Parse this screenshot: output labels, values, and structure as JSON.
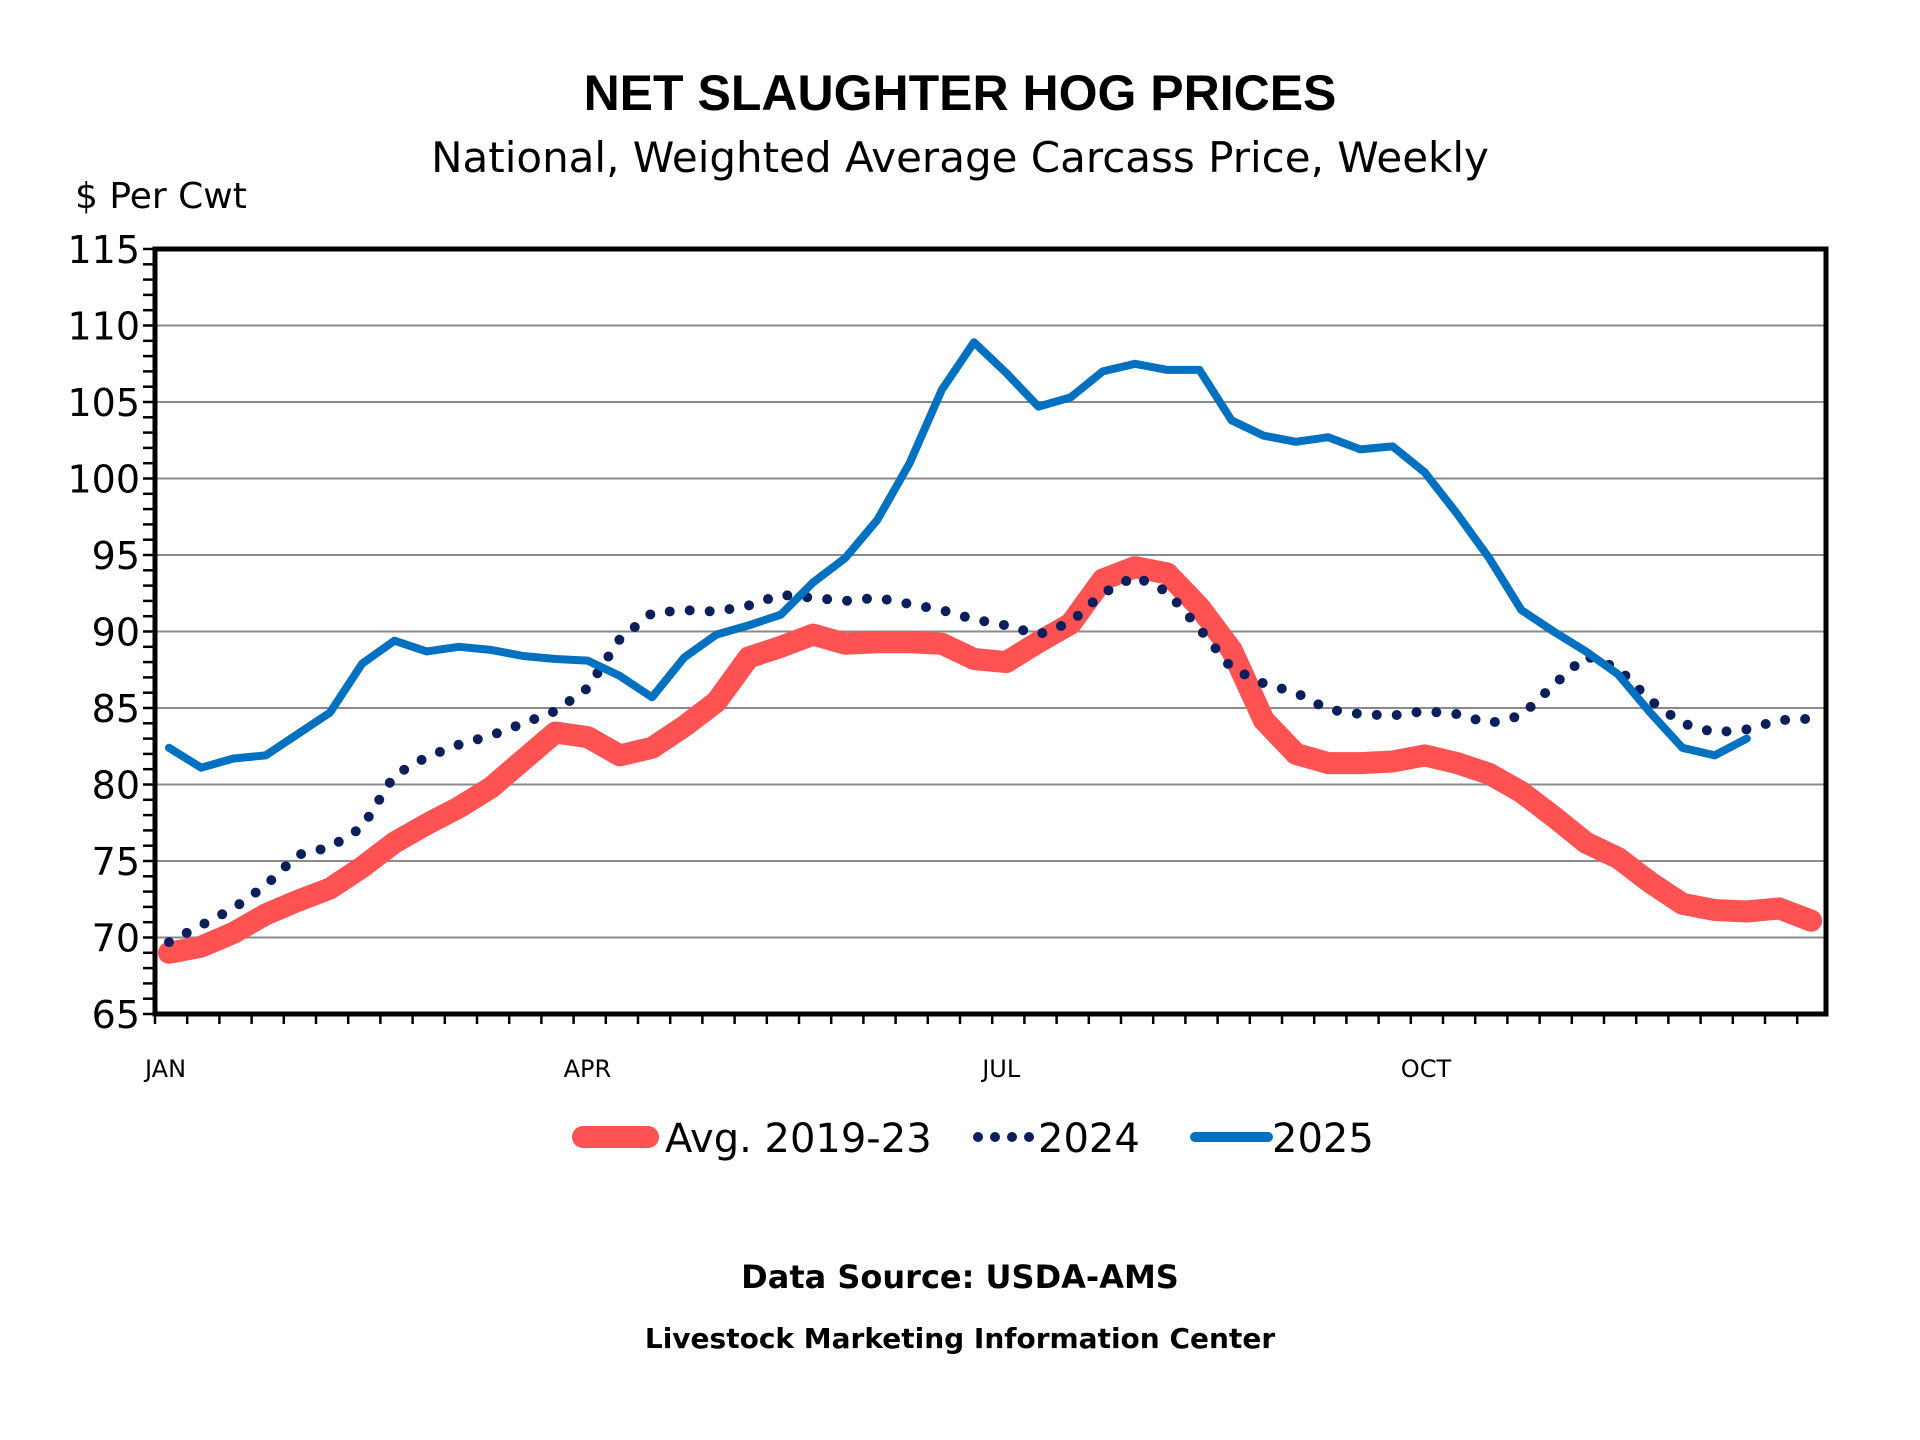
{
  "chart_data": {
    "type": "line",
    "title": "NET SLAUGHTER HOG PRICES",
    "subtitle": "National, Weighted Average Carcass Price, Weekly",
    "ylabel": "$ Per Cwt",
    "xlabel": "",
    "ylim": [
      65,
      115
    ],
    "yticks": [
      65,
      70,
      75,
      80,
      85,
      90,
      95,
      100,
      105,
      110,
      115
    ],
    "ytick_labels": [
      "65",
      "70",
      "75",
      "80",
      "85",
      "90",
      "95",
      "100",
      "105",
      "110",
      "115"
    ],
    "xlim": [
      1,
      52
    ],
    "x_unit": "week of year",
    "x_month_labels": [
      {
        "label": "JAN",
        "week": 1
      },
      {
        "label": "APR",
        "week": 14
      },
      {
        "label": "JUL",
        "week": 27
      },
      {
        "label": "OCT",
        "week": 40
      }
    ],
    "grid": true,
    "legend_position": "bottom-center",
    "series": [
      {
        "name": "Avg. 2019-23",
        "color": "#ff5252",
        "style": "thick-solid",
        "weeks": [
          1,
          2,
          3,
          4,
          5,
          6,
          7,
          8,
          9,
          10,
          11,
          12,
          13,
          14,
          15,
          16,
          17,
          18,
          19,
          20,
          21,
          22,
          23,
          24,
          25,
          26,
          27,
          28,
          29,
          30,
          31,
          32,
          33,
          34,
          35,
          36,
          37,
          38,
          39,
          40,
          41,
          42,
          43,
          44,
          45,
          46,
          47,
          48,
          49,
          50,
          51,
          52
        ],
        "values": [
          69.0,
          69.4,
          70.3,
          71.5,
          72.4,
          73.2,
          74.6,
          76.2,
          77.4,
          78.5,
          79.8,
          81.6,
          83.4,
          83.1,
          81.9,
          82.4,
          83.8,
          85.4,
          88.3,
          89.0,
          89.8,
          89.2,
          89.3,
          89.3,
          89.2,
          88.2,
          88.0,
          89.3,
          90.5,
          93.4,
          94.2,
          93.8,
          91.6,
          88.8,
          84.2,
          82.0,
          81.4,
          81.4,
          81.5,
          81.9,
          81.4,
          80.7,
          79.5,
          77.9,
          76.2,
          75.2,
          73.6,
          72.2,
          71.8,
          71.7,
          71.9,
          71.1
        ]
      },
      {
        "name": "2024",
        "color": "#0a1f5c",
        "style": "dotted",
        "weeks": [
          1,
          2,
          3,
          4,
          5,
          6,
          7,
          8,
          9,
          10,
          11,
          12,
          13,
          14,
          15,
          16,
          17,
          18,
          19,
          20,
          21,
          22,
          23,
          24,
          25,
          26,
          27,
          28,
          29,
          30,
          31,
          32,
          33,
          34,
          35,
          36,
          37,
          38,
          39,
          40,
          41,
          42,
          43,
          44,
          45,
          46,
          47,
          48,
          49,
          50,
          51,
          52
        ],
        "values": [
          69.7,
          70.8,
          71.9,
          73.4,
          75.4,
          75.9,
          77.2,
          80.6,
          81.8,
          82.6,
          83.2,
          84.0,
          84.8,
          86.3,
          89.5,
          91.2,
          91.4,
          91.3,
          91.7,
          92.4,
          92.2,
          92.0,
          92.2,
          91.8,
          91.4,
          90.8,
          90.4,
          89.8,
          90.6,
          92.5,
          93.6,
          92.6,
          90.2,
          87.6,
          86.6,
          86.0,
          84.9,
          84.6,
          84.5,
          84.8,
          84.6,
          84.0,
          84.5,
          86.5,
          88.4,
          87.6,
          85.5,
          84.0,
          83.4,
          83.6,
          84.2,
          84.3
        ]
      },
      {
        "name": "2025",
        "color": "#0070c0",
        "style": "solid",
        "weeks": [
          1,
          2,
          3,
          4,
          5,
          6,
          7,
          8,
          9,
          10,
          11,
          12,
          13,
          14,
          15,
          16,
          17,
          18,
          19,
          20,
          21,
          22,
          23,
          24,
          25,
          26,
          27,
          28,
          29,
          30,
          31,
          32,
          33,
          34,
          35,
          36,
          37,
          38,
          39,
          40,
          41,
          42,
          43,
          44,
          45,
          46,
          47,
          48,
          49,
          50
        ],
        "values": [
          82.4,
          81.1,
          81.7,
          81.9,
          83.3,
          84.7,
          87.9,
          89.4,
          88.7,
          89.0,
          88.8,
          88.4,
          88.2,
          88.1,
          87.1,
          85.7,
          88.3,
          89.8,
          90.4,
          91.1,
          93.2,
          94.8,
          97.3,
          101.0,
          105.8,
          108.9,
          106.9,
          104.7,
          105.3,
          107.0,
          107.5,
          107.1,
          107.1,
          103.8,
          102.8,
          102.4,
          102.7,
          101.9,
          102.1,
          100.4,
          97.7,
          94.8,
          91.4,
          90.0,
          88.7,
          87.2,
          84.7,
          82.4,
          81.9,
          83.0
        ]
      }
    ]
  },
  "footer": {
    "source": "Data Source:  USDA-AMS",
    "organization": "Livestock Marketing Information Center"
  }
}
